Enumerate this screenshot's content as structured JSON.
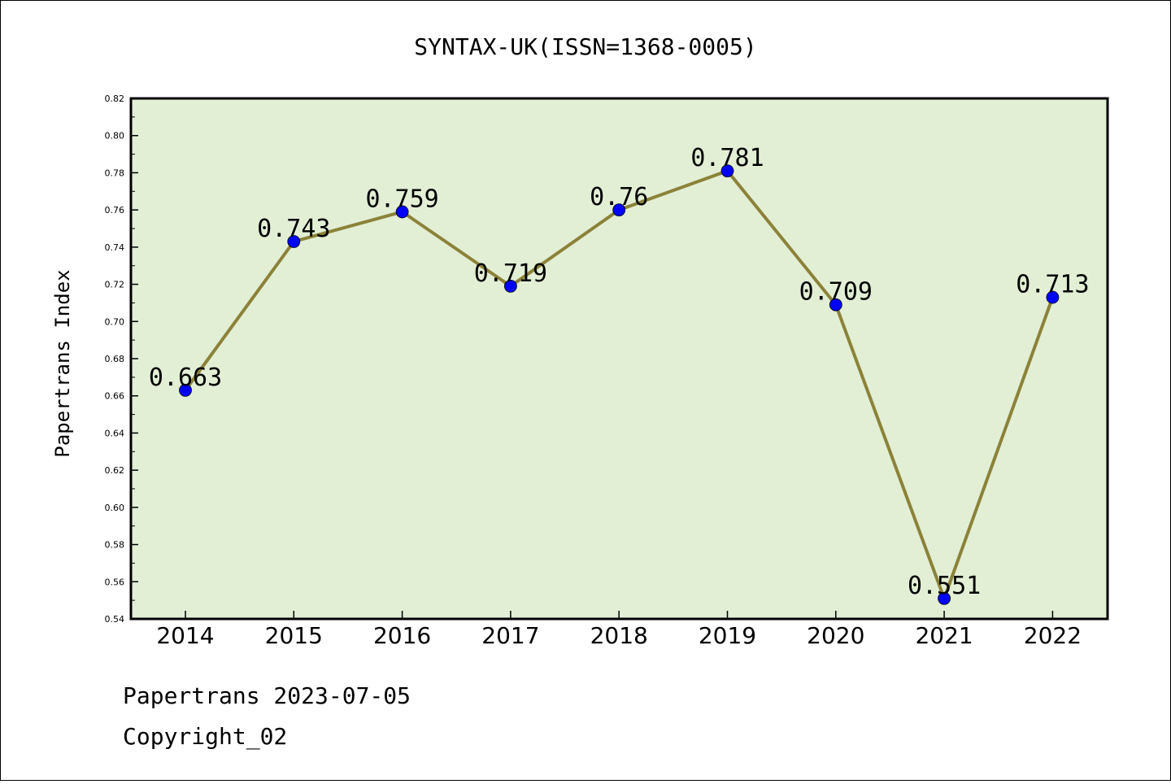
{
  "chart_data": {
    "type": "line",
    "title": "SYNTAX-UK(ISSN=1368-0005)",
    "ylabel": "Papertrans Index",
    "xlabel": "",
    "categories": [
      "2014",
      "2015",
      "2016",
      "2017",
      "2018",
      "2019",
      "2020",
      "2021",
      "2022"
    ],
    "values": [
      0.663,
      0.743,
      0.759,
      0.719,
      0.76,
      0.781,
      0.709,
      0.551,
      0.713
    ],
    "data_labels": [
      "0.663",
      "0.743",
      "0.759",
      "0.719",
      "0.76",
      "0.781",
      "0.709",
      "0.551",
      "0.713"
    ],
    "ylim": [
      0.54,
      0.82
    ],
    "yticks": [
      "0.54",
      "0.56",
      "0.58",
      "0.60",
      "0.62",
      "0.64",
      "0.66",
      "0.68",
      "0.70",
      "0.72",
      "0.74",
      "0.76",
      "0.78",
      "0.80",
      "0.82"
    ],
    "line_color": "#8b8239",
    "marker_color": "#0000ff",
    "plot_background": "#e2efd5",
    "grid": false,
    "legend": "none"
  },
  "footer": {
    "line1": "Papertrans 2023-07-05",
    "line2": "Copyright_02"
  }
}
